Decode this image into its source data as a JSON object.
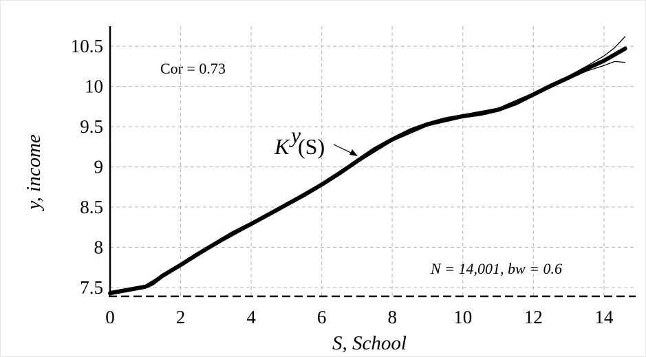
{
  "chart_data": {
    "type": "line",
    "xlabel": "S, School",
    "ylabel": "y, income",
    "xlim": [
      0,
      14.9
    ],
    "ylim": [
      7.38,
      10.75
    ],
    "x_ticks": [
      "0",
      "2",
      "4",
      "6",
      "8",
      "10",
      "12",
      "14"
    ],
    "y_ticks": [
      "7.5",
      "8",
      "8.5",
      "9",
      "9.5",
      "10",
      "10.5"
    ],
    "grid": true,
    "baseline_y": 7.39,
    "annotations": {
      "correlation": "Cor = 0.73",
      "curve_label_main": "K",
      "curve_label_sup": "y",
      "curve_label_arg": "(S)",
      "sample": "N = 14,001, bw = 0.6"
    },
    "series": [
      {
        "role": "estimate",
        "x": [
          0,
          0.5,
          1,
          1.2,
          1.5,
          2,
          2.5,
          3,
          3.5,
          4,
          4.5,
          5,
          5.5,
          6,
          6.5,
          7,
          7.5,
          8,
          8.5,
          9,
          9.5,
          10,
          10.5,
          11,
          11.5,
          12,
          12.5,
          13,
          13.5,
          14,
          14.6
        ],
        "y": [
          7.43,
          7.47,
          7.51,
          7.55,
          7.65,
          7.78,
          7.92,
          8.05,
          8.18,
          8.29,
          8.41,
          8.53,
          8.65,
          8.78,
          8.92,
          9.07,
          9.22,
          9.34,
          9.45,
          9.53,
          9.59,
          9.63,
          9.66,
          9.71,
          9.79,
          9.9,
          10.01,
          10.11,
          10.22,
          10.32,
          10.47
        ]
      },
      {
        "role": "upper-band",
        "x": [
          0,
          1,
          2,
          3,
          4,
          5,
          6,
          7,
          8,
          9,
          10,
          11,
          12,
          13,
          13.5,
          14,
          14.3,
          14.6
        ],
        "y": [
          7.45,
          7.53,
          7.8,
          8.07,
          8.31,
          8.55,
          8.8,
          9.09,
          9.36,
          9.55,
          9.65,
          9.73,
          9.92,
          10.13,
          10.25,
          10.38,
          10.48,
          10.62
        ]
      },
      {
        "role": "lower-band",
        "x": [
          0,
          1,
          2,
          3,
          4,
          5,
          6,
          7,
          8,
          9,
          10,
          11,
          12,
          13,
          13.5,
          14,
          14.3,
          14.6
        ],
        "y": [
          7.41,
          7.49,
          7.76,
          8.03,
          8.27,
          8.51,
          8.76,
          9.05,
          9.32,
          9.51,
          9.61,
          9.69,
          9.88,
          10.09,
          10.19,
          10.26,
          10.31,
          10.3
        ]
      }
    ]
  }
}
